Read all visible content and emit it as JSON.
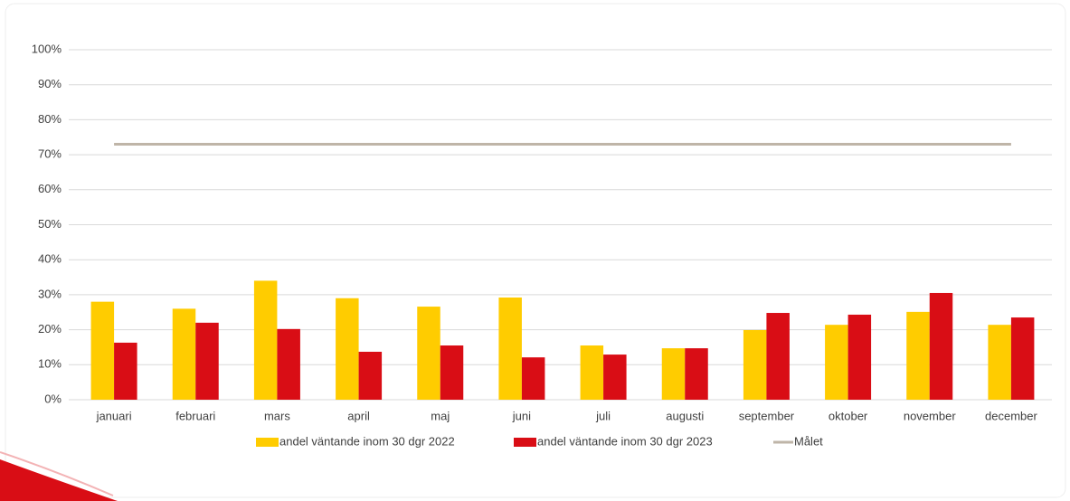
{
  "chart_data": {
    "type": "bar",
    "categories": [
      "januari",
      "februari",
      "mars",
      "april",
      "maj",
      "juni",
      "juli",
      "augusti",
      "september",
      "oktober",
      "november",
      "december"
    ],
    "series": [
      {
        "name": "andel väntande inom 30 dgr 2022",
        "color": "#ffcc00",
        "values": [
          28,
          26,
          34,
          29,
          26.6,
          29.2,
          15.5,
          14.7,
          19.9,
          21.4,
          25.1,
          21.4
        ]
      },
      {
        "name": "andel väntande inom 30 dgr 2023",
        "color": "#d90d15",
        "values": [
          16.3,
          22,
          20.2,
          13.7,
          15.5,
          12.1,
          12.9,
          14.7,
          24.8,
          24.3,
          30.5,
          23.5
        ]
      },
      {
        "name": "Målet",
        "color": "#bfb5a8",
        "type": "line",
        "values": [
          73,
          73,
          73,
          73,
          73,
          73,
          73,
          73,
          73,
          73,
          73,
          73
        ]
      }
    ],
    "ylim": [
      0,
      100
    ],
    "yticks": [
      {
        "value": 0,
        "label": "0%"
      },
      {
        "value": 10,
        "label": "10%"
      },
      {
        "value": 20,
        "label": "20%"
      },
      {
        "value": 30,
        "label": "30%"
      },
      {
        "value": 40,
        "label": "40%"
      },
      {
        "value": 50,
        "label": "50%"
      },
      {
        "value": 60,
        "label": "60%"
      },
      {
        "value": 70,
        "label": "70%"
      },
      {
        "value": 80,
        "label": "80%"
      },
      {
        "value": 90,
        "label": "90%"
      },
      {
        "value": 100,
        "label": "100%"
      }
    ],
    "grid": true,
    "legend": "bottom"
  }
}
